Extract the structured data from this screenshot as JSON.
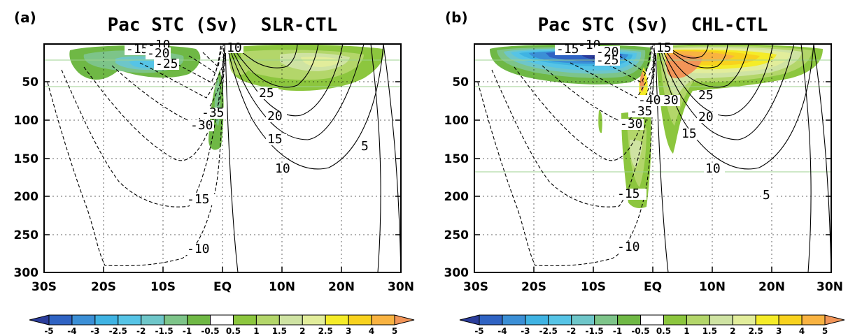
{
  "colors": {
    "neg5": "#2b3d9b",
    "neg4": "#2f63c3",
    "neg3": "#3b8fd6",
    "neg25": "#3fb3e3",
    "neg2": "#56c4e6",
    "neg15": "#6ec6c9",
    "neg1": "#7dc489",
    "neg05": "#6fb845",
    "zero": "#ffffff",
    "pos05": "#8cc63e",
    "pos1": "#b3d66a",
    "pos15": "#cfe3a3",
    "pos2": "#e2ed9b",
    "pos25": "#f5ec28",
    "pos3": "#f8d21e",
    "pos4": "#f9b341",
    "pos5": "#f29558",
    "contour": "#000000",
    "frame": "#000000",
    "green_line": "#9ed28f"
  },
  "chart_data": [
    {
      "id": "a",
      "panel_label": "(a)",
      "title": "Pac STC (Sv)  SLR-CTL",
      "type": "contour",
      "x_ticks": [
        "30S",
        "20S",
        "10S",
        "EQ",
        "10N",
        "20N",
        "30N"
      ],
      "x_range": [
        -30,
        30
      ],
      "y_ticks": [
        "50",
        "100",
        "150",
        "200",
        "250",
        "300"
      ],
      "y_range": [
        0,
        300
      ],
      "y_inverted": true,
      "contour_labels": [
        "-15",
        "-10",
        "-20",
        "-25",
        "10",
        "-35",
        "-30",
        "25",
        "20",
        "15",
        "10",
        "5",
        "-15",
        "-10"
      ],
      "shading_levels": [
        -5,
        -4,
        -3,
        -2.5,
        -2,
        -1.5,
        -1,
        -0.5,
        0.5,
        1,
        1.5,
        2,
        2.5,
        3,
        4,
        5
      ]
    },
    {
      "id": "b",
      "panel_label": "(b)",
      "title": "Pac STC (Sv)  CHL-CTL",
      "type": "contour",
      "x_ticks": [
        "30S",
        "20S",
        "10S",
        "EQ",
        "10N",
        "20N",
        "30N"
      ],
      "x_range": [
        -30,
        30
      ],
      "y_ticks": [
        "50",
        "100",
        "150",
        "200",
        "250",
        "300"
      ],
      "y_range": [
        0,
        300
      ],
      "y_inverted": true,
      "contour_labels": [
        "-15",
        "-10",
        "-20",
        "-25",
        "15",
        "-40",
        "30",
        "-35",
        "25",
        "-30",
        "20",
        "15",
        "10",
        "5",
        "-15",
        "-10"
      ],
      "shading_levels": [
        -5,
        -4,
        -3,
        -2.5,
        -2,
        -1.5,
        -1,
        -0.5,
        0.5,
        1,
        1.5,
        2,
        2.5,
        3,
        4,
        5
      ]
    }
  ],
  "colorbar": {
    "labels": [
      "-5",
      "-4",
      "-3",
      "-2.5",
      "-2",
      "-1.5",
      "-1",
      "-0.5",
      "0.5",
      "1",
      "1.5",
      "2",
      "2.5",
      "3",
      "4",
      "5"
    ]
  }
}
